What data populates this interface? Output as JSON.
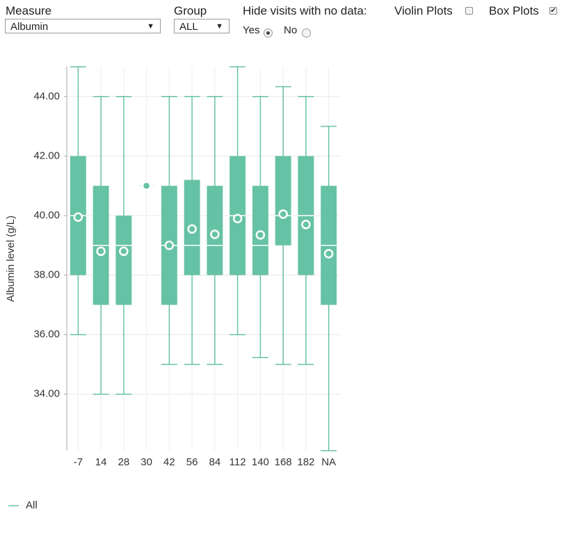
{
  "controls": {
    "measure_label": "Measure",
    "measure_value": "Albumin",
    "group_label": "Group",
    "group_value": "ALL",
    "hide_label": "Hide visits with no data:",
    "yes": "Yes",
    "no": "No",
    "violin": "Violin Plots",
    "box": "Box Plots"
  },
  "chart_data": {
    "type": "box",
    "ylabel": "Albumin level (g/L)",
    "categories": [
      "-7",
      "14",
      "28",
      "30",
      "42",
      "56",
      "84",
      "112",
      "140",
      "168",
      "182",
      "NA"
    ],
    "series": [
      {
        "name": "All",
        "color": "#66c2a5",
        "min": [
          36,
          34,
          34,
          41,
          35,
          35,
          35,
          36,
          35.23,
          35,
          35,
          32.1
        ],
        "q1": [
          38,
          37,
          37,
          41,
          37,
          38,
          38,
          38,
          38,
          39,
          38,
          37
        ],
        "median": [
          40,
          39,
          39,
          41,
          39,
          39,
          39,
          40,
          39,
          40,
          40,
          39
        ],
        "q3": [
          42,
          41,
          40,
          41,
          41,
          41.2,
          41,
          42,
          41,
          42,
          42,
          41
        ],
        "max": [
          45,
          44,
          44,
          41,
          44,
          44,
          44,
          45,
          44,
          44.33,
          44,
          43
        ],
        "mean": [
          39.95,
          38.8,
          38.8,
          41,
          39,
          39.55,
          39.37,
          39.9,
          39.35,
          40.05,
          39.7,
          38.72
        ]
      }
    ],
    "ylim": [
      32.1,
      45
    ],
    "yticks": [
      {
        "value": 34,
        "label": "34.00"
      },
      {
        "value": 36,
        "label": "36.00"
      },
      {
        "value": 38,
        "label": "38.00"
      },
      {
        "value": 40,
        "label": "40.00"
      },
      {
        "value": 42,
        "label": "42.00"
      },
      {
        "value": 44,
        "label": "44.00"
      }
    ],
    "grid": true
  }
}
